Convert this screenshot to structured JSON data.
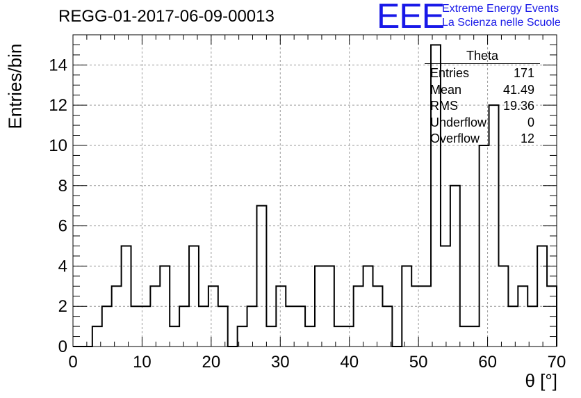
{
  "title": "REGG-01-2017-06-09-00013",
  "logo": {
    "mark": "EEE",
    "line1": "Extreme Energy Events",
    "line2": "La Scienza nelle Scuole",
    "color": "#1818e8"
  },
  "stats_box": {
    "title": "Theta",
    "rows": [
      {
        "label": "Entries",
        "value": "171"
      },
      {
        "label": "Mean",
        "value": "41.49"
      },
      {
        "label": "RMS",
        "value": "19.36"
      },
      {
        "label": "Underflow",
        "value": "0"
      },
      {
        "label": "Overflow",
        "value": "12"
      }
    ]
  },
  "chart_data": {
    "type": "bar",
    "histogram": true,
    "title": "REGG-01-2017-06-09-00013",
    "xlabel": "θ [°]",
    "ylabel": "Entries/bin",
    "xlim": [
      0,
      70
    ],
    "ylim": [
      0,
      15.5
    ],
    "xticks": [
      0,
      10,
      20,
      30,
      40,
      50,
      60,
      70
    ],
    "yticks": [
      0,
      2,
      4,
      6,
      8,
      10,
      12,
      14
    ],
    "grid": true,
    "bin_edges": [
      0.0,
      1.4,
      2.8,
      4.2,
      5.6,
      7.0,
      8.4,
      9.8,
      11.2,
      12.6,
      14.0,
      15.4,
      16.8,
      18.2,
      19.6,
      21.0,
      22.4,
      23.8,
      25.2,
      26.6,
      28.0,
      29.4,
      30.8,
      32.2,
      33.6,
      35.0,
      36.4,
      37.8,
      39.2,
      40.6,
      42.0,
      43.4,
      44.8,
      46.2,
      47.6,
      49.0,
      50.4,
      51.8,
      53.2,
      54.6,
      56.0,
      57.4,
      58.8,
      60.2,
      61.6,
      63.0,
      64.4,
      65.8,
      67.2,
      68.6,
      70.0
    ],
    "values": [
      0,
      0,
      1,
      2,
      3,
      5,
      2,
      2,
      3,
      4,
      1,
      2,
      5,
      2,
      3,
      2,
      0,
      1,
      2,
      7,
      1,
      3,
      2,
      2,
      1,
      4,
      4,
      1,
      1,
      3,
      4,
      3,
      2,
      0,
      4,
      3,
      3,
      15,
      5,
      8,
      1,
      1,
      10,
      12,
      4,
      2,
      3,
      2,
      5,
      3
    ]
  }
}
